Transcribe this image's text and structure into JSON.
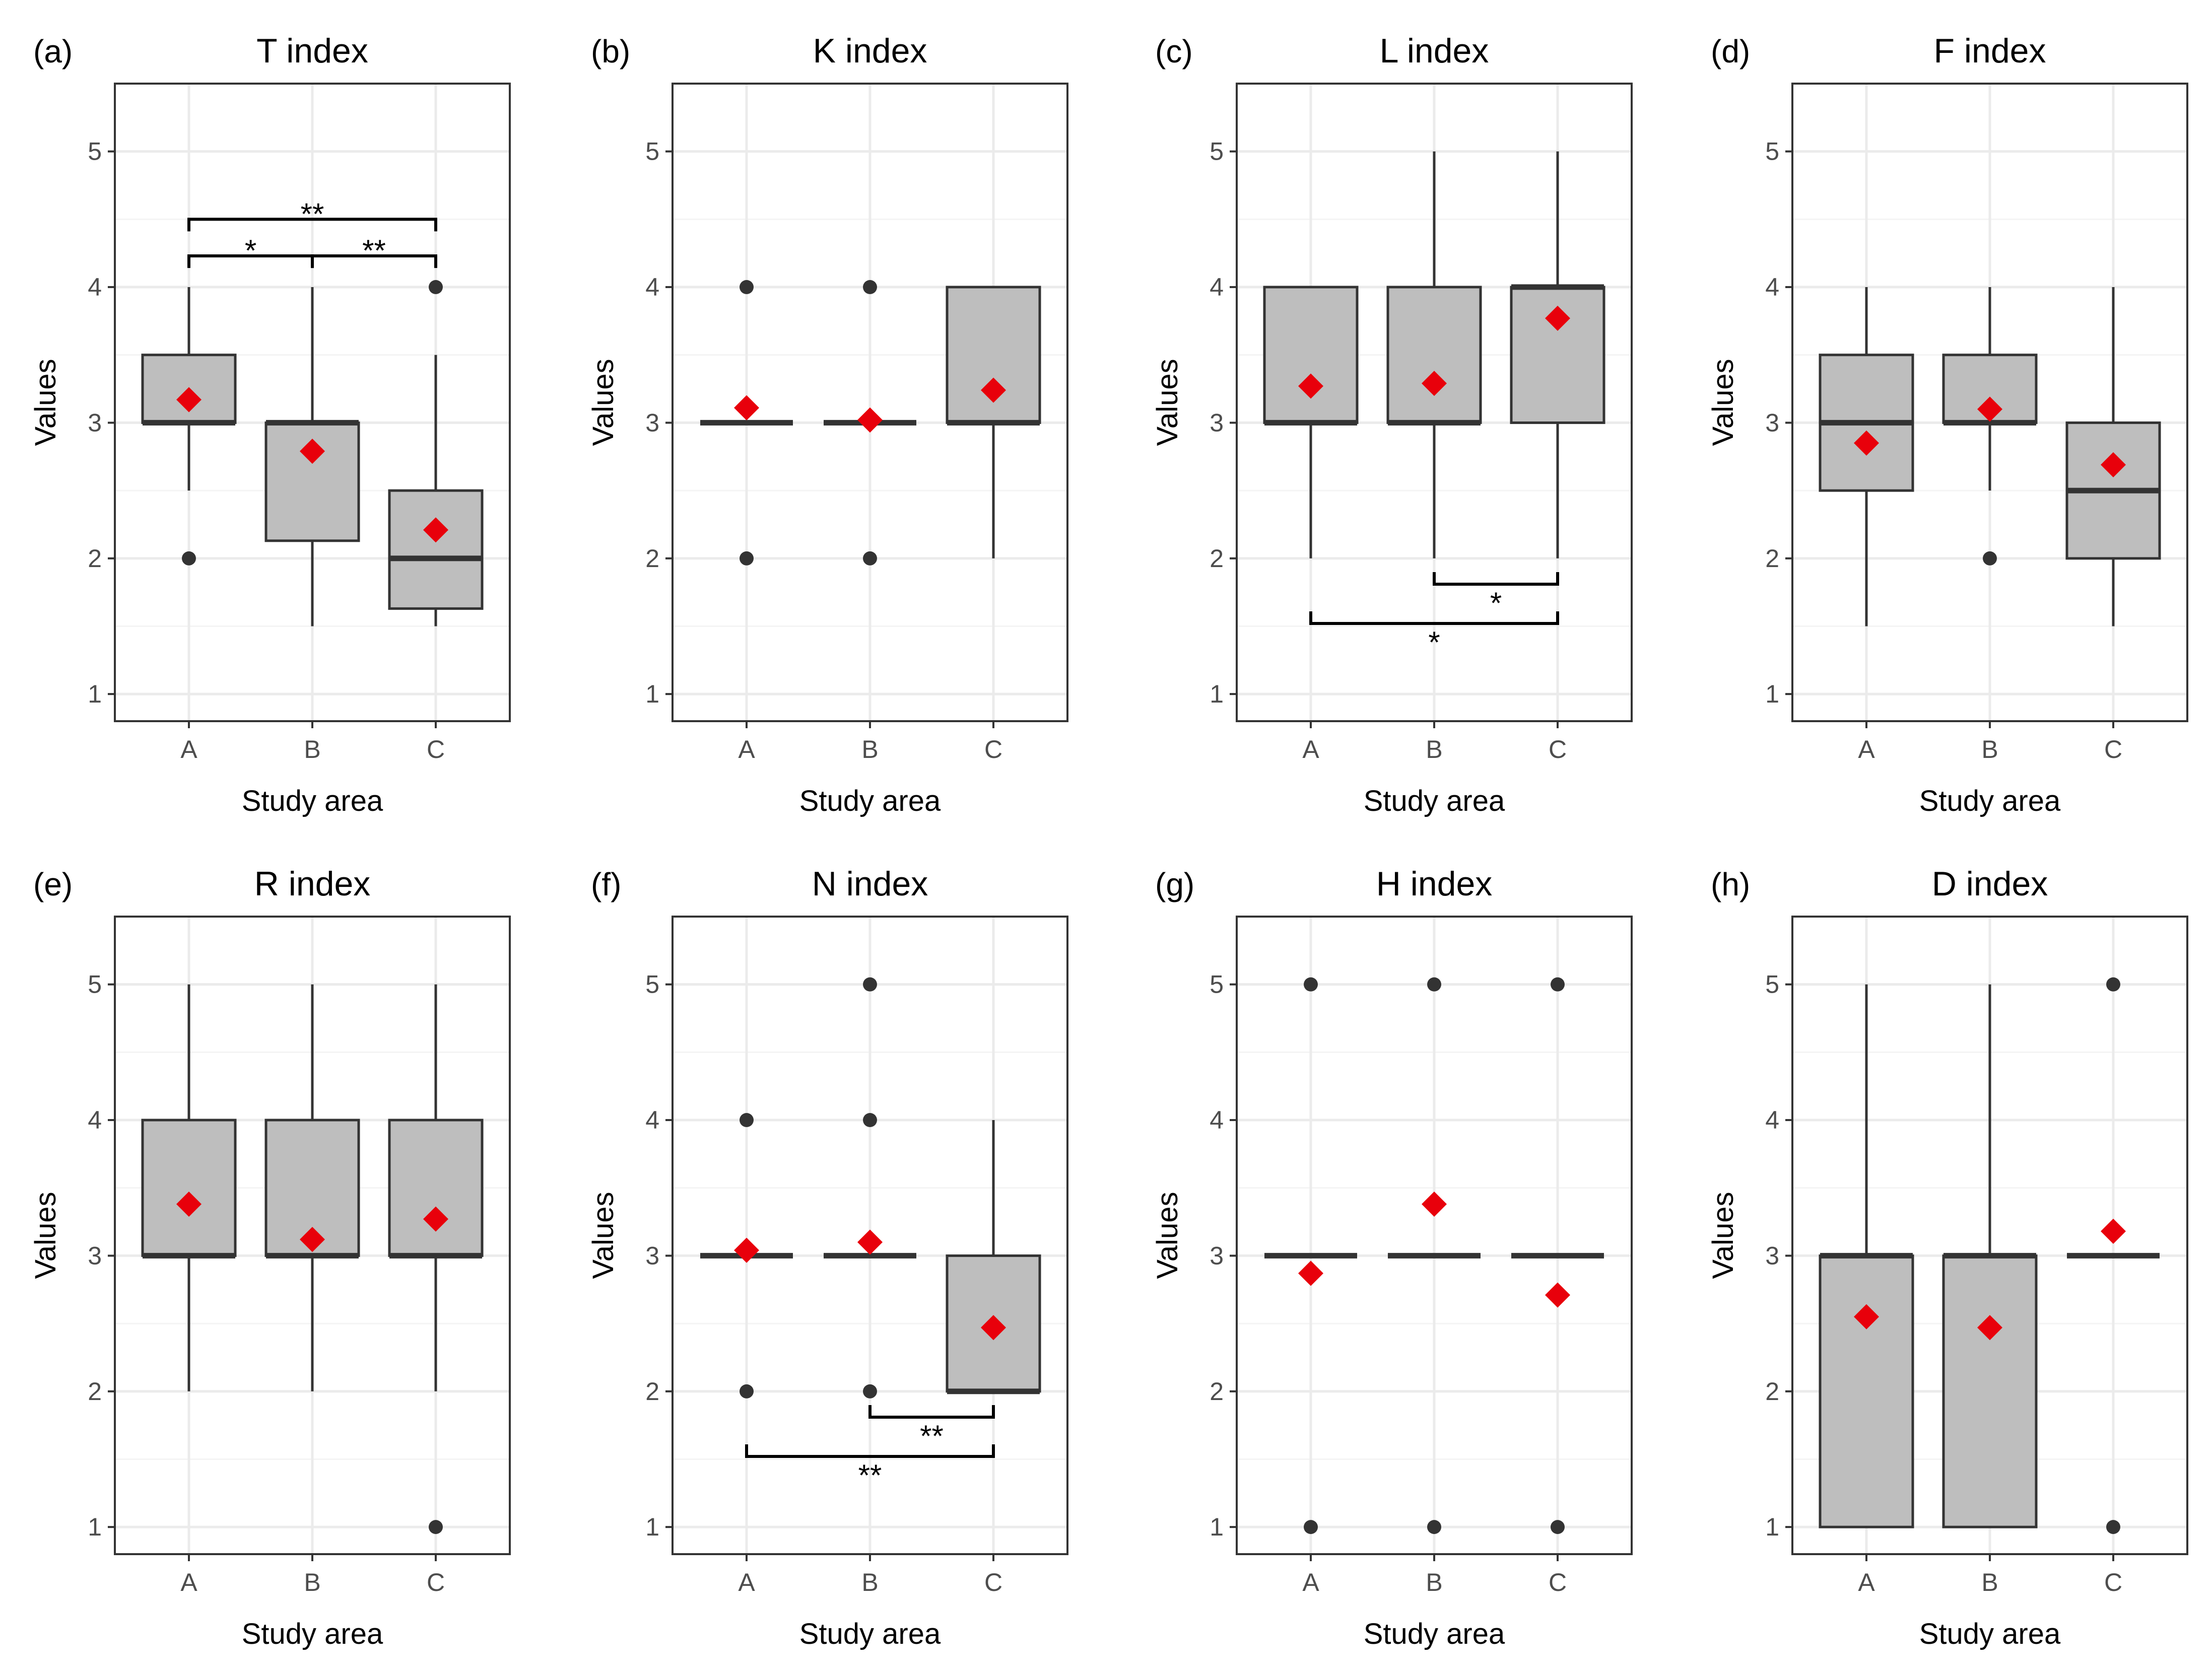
{
  "colors": {
    "box_fill": "#bebebe",
    "box_stroke": "#333333",
    "median": "#333333",
    "outlier": "#333333",
    "mean_marker": "#e8000b",
    "grid_major": "#ebebeb",
    "grid_minor": "#f4f4f4",
    "panel_border": "#333333",
    "significance": "#000000"
  },
  "chart_data": [
    {
      "type": "boxplot",
      "panel_label": "(a)",
      "title": "T index",
      "xlabel": "Study area",
      "ylabel": "Values",
      "categories": [
        "A",
        "B",
        "C"
      ],
      "ylim": [
        0.8,
        5.5
      ],
      "yticks": [
        1,
        2,
        3,
        4,
        5
      ],
      "boxes": [
        {
          "category": "A",
          "whisker_low": 2.5,
          "q1": 3.0,
          "median": 3.0,
          "q3": 3.5,
          "whisker_high": 4.0,
          "mean": 3.17,
          "outliers": [
            2
          ]
        },
        {
          "category": "B",
          "whisker_low": 1.5,
          "q1": 2.13,
          "median": 3.0,
          "q3": 3.0,
          "whisker_high": 4.0,
          "mean": 2.79,
          "outliers": []
        },
        {
          "category": "C",
          "whisker_low": 1.5,
          "q1": 1.63,
          "median": 2.0,
          "q3": 2.5,
          "whisker_high": 3.5,
          "mean": 2.21,
          "outliers": [
            4
          ]
        }
      ],
      "significance": [
        {
          "from": "A",
          "to": "C",
          "y": 4.5,
          "label": "**"
        },
        {
          "from": "A",
          "to": "B",
          "y": 4.23,
          "label": "*"
        },
        {
          "from": "B",
          "to": "C",
          "y": 4.23,
          "label": "**"
        }
      ]
    },
    {
      "type": "boxplot",
      "panel_label": "(b)",
      "title": "K index",
      "xlabel": "Study area",
      "ylabel": "Values",
      "categories": [
        "A",
        "B",
        "C"
      ],
      "ylim": [
        0.8,
        5.5
      ],
      "yticks": [
        1,
        2,
        3,
        4,
        5
      ],
      "boxes": [
        {
          "category": "A",
          "whisker_low": 3.0,
          "q1": 3.0,
          "median": 3.0,
          "q3": 3.0,
          "whisker_high": 3.0,
          "mean": 3.11,
          "outliers": [
            2,
            4
          ]
        },
        {
          "category": "B",
          "whisker_low": 3.0,
          "q1": 3.0,
          "median": 3.0,
          "q3": 3.0,
          "whisker_high": 3.0,
          "mean": 3.02,
          "outliers": [
            2,
            4
          ]
        },
        {
          "category": "C",
          "whisker_low": 2.0,
          "q1": 3.0,
          "median": 3.0,
          "q3": 4.0,
          "whisker_high": 4.0,
          "mean": 3.24,
          "outliers": []
        }
      ],
      "significance": []
    },
    {
      "type": "boxplot",
      "panel_label": "(c)",
      "title": "L index",
      "xlabel": "Study area",
      "ylabel": "Values",
      "categories": [
        "A",
        "B",
        "C"
      ],
      "ylim": [
        0.8,
        5.5
      ],
      "yticks": [
        1,
        2,
        3,
        4,
        5
      ],
      "boxes": [
        {
          "category": "A",
          "whisker_low": 2.0,
          "q1": 3.0,
          "median": 3.0,
          "q3": 4.0,
          "whisker_high": 4.0,
          "mean": 3.27,
          "outliers": []
        },
        {
          "category": "B",
          "whisker_low": 2.0,
          "q1": 3.0,
          "median": 3.0,
          "q3": 4.0,
          "whisker_high": 5.0,
          "mean": 3.29,
          "outliers": []
        },
        {
          "category": "C",
          "whisker_low": 2.0,
          "q1": 3.0,
          "median": 4.0,
          "q3": 4.0,
          "whisker_high": 5.0,
          "mean": 3.77,
          "outliers": []
        }
      ],
      "significance": [
        {
          "from": "B",
          "to": "C",
          "y": 1.81,
          "label": "*",
          "position": "below"
        },
        {
          "from": "A",
          "to": "C",
          "y": 1.52,
          "label": "*",
          "position": "below"
        }
      ]
    },
    {
      "type": "boxplot",
      "panel_label": "(d)",
      "title": "F index",
      "xlabel": "Study area",
      "ylabel": "Values",
      "categories": [
        "A",
        "B",
        "C"
      ],
      "ylim": [
        0.8,
        5.5
      ],
      "yticks": [
        1,
        2,
        3,
        4,
        5
      ],
      "boxes": [
        {
          "category": "A",
          "whisker_low": 1.5,
          "q1": 2.5,
          "median": 3.0,
          "q3": 3.5,
          "whisker_high": 4.0,
          "mean": 2.85,
          "outliers": []
        },
        {
          "category": "B",
          "whisker_low": 2.5,
          "q1": 3.0,
          "median": 3.0,
          "q3": 3.5,
          "whisker_high": 4.0,
          "mean": 3.1,
          "outliers": [
            2
          ]
        },
        {
          "category": "C",
          "whisker_low": 1.5,
          "q1": 2.0,
          "median": 2.5,
          "q3": 3.0,
          "whisker_high": 4.0,
          "mean": 2.69,
          "outliers": []
        }
      ],
      "significance": []
    },
    {
      "type": "boxplot",
      "panel_label": "(e)",
      "title": "R index",
      "xlabel": "Study area",
      "ylabel": "Values",
      "categories": [
        "A",
        "B",
        "C"
      ],
      "ylim": [
        0.8,
        5.5
      ],
      "yticks": [
        1,
        2,
        3,
        4,
        5
      ],
      "boxes": [
        {
          "category": "A",
          "whisker_low": 2.0,
          "q1": 3.0,
          "median": 3.0,
          "q3": 4.0,
          "whisker_high": 5.0,
          "mean": 3.38,
          "outliers": []
        },
        {
          "category": "B",
          "whisker_low": 2.0,
          "q1": 3.0,
          "median": 3.0,
          "q3": 4.0,
          "whisker_high": 5.0,
          "mean": 3.12,
          "outliers": []
        },
        {
          "category": "C",
          "whisker_low": 2.0,
          "q1": 3.0,
          "median": 3.0,
          "q3": 4.0,
          "whisker_high": 5.0,
          "mean": 3.27,
          "outliers": [
            1
          ]
        }
      ],
      "significance": []
    },
    {
      "type": "boxplot",
      "panel_label": "(f)",
      "title": "N index",
      "xlabel": "Study area",
      "ylabel": "Values",
      "categories": [
        "A",
        "B",
        "C"
      ],
      "ylim": [
        0.8,
        5.5
      ],
      "yticks": [
        1,
        2,
        3,
        4,
        5
      ],
      "boxes": [
        {
          "category": "A",
          "whisker_low": 3.0,
          "q1": 3.0,
          "median": 3.0,
          "q3": 3.0,
          "whisker_high": 3.0,
          "mean": 3.04,
          "outliers": [
            2,
            4
          ]
        },
        {
          "category": "B",
          "whisker_low": 3.0,
          "q1": 3.0,
          "median": 3.0,
          "q3": 3.0,
          "whisker_high": 3.0,
          "mean": 3.1,
          "outliers": [
            2,
            4,
            5
          ]
        },
        {
          "category": "C",
          "whisker_low": 2.0,
          "q1": 2.0,
          "median": 2.0,
          "q3": 3.0,
          "whisker_high": 4.0,
          "mean": 2.47,
          "outliers": []
        }
      ],
      "significance": [
        {
          "from": "B",
          "to": "C",
          "y": 1.81,
          "label": "**",
          "position": "below"
        },
        {
          "from": "A",
          "to": "C",
          "y": 1.52,
          "label": "**",
          "position": "below"
        }
      ]
    },
    {
      "type": "boxplot",
      "panel_label": "(g)",
      "title": "H index",
      "xlabel": "Study area",
      "ylabel": "Values",
      "categories": [
        "A",
        "B",
        "C"
      ],
      "ylim": [
        0.8,
        5.5
      ],
      "yticks": [
        1,
        2,
        3,
        4,
        5
      ],
      "boxes": [
        {
          "category": "A",
          "whisker_low": 3.0,
          "q1": 3.0,
          "median": 3.0,
          "q3": 3.0,
          "whisker_high": 3.0,
          "mean": 2.87,
          "outliers": [
            1,
            5
          ]
        },
        {
          "category": "B",
          "whisker_low": 3.0,
          "q1": 3.0,
          "median": 3.0,
          "q3": 3.0,
          "whisker_high": 3.0,
          "mean": 3.38,
          "outliers": [
            1,
            5
          ]
        },
        {
          "category": "C",
          "whisker_low": 3.0,
          "q1": 3.0,
          "median": 3.0,
          "q3": 3.0,
          "whisker_high": 3.0,
          "mean": 2.71,
          "outliers": [
            1,
            5
          ]
        }
      ],
      "significance": []
    },
    {
      "type": "boxplot",
      "panel_label": "(h)",
      "title": "D index",
      "xlabel": "Study area",
      "ylabel": "Values",
      "categories": [
        "A",
        "B",
        "C"
      ],
      "ylim": [
        0.8,
        5.5
      ],
      "yticks": [
        1,
        2,
        3,
        4,
        5
      ],
      "boxes": [
        {
          "category": "A",
          "whisker_low": 1.0,
          "q1": 1.0,
          "median": 3.0,
          "q3": 3.0,
          "whisker_high": 5.0,
          "mean": 2.55,
          "outliers": []
        },
        {
          "category": "B",
          "whisker_low": 1.0,
          "q1": 1.0,
          "median": 3.0,
          "q3": 3.0,
          "whisker_high": 5.0,
          "mean": 2.47,
          "outliers": []
        },
        {
          "category": "C",
          "whisker_low": 3.0,
          "q1": 3.0,
          "median": 3.0,
          "q3": 3.0,
          "whisker_high": 3.0,
          "mean": 3.18,
          "outliers": [
            1,
            5
          ]
        }
      ],
      "significance": []
    }
  ]
}
